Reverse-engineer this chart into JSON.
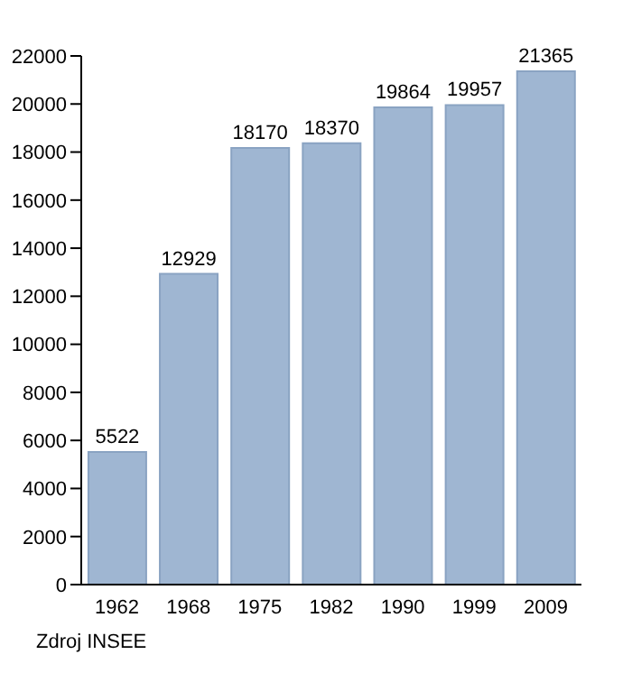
{
  "chart_data": {
    "type": "bar",
    "categories": [
      "1962",
      "1968",
      "1975",
      "1982",
      "1990",
      "1999",
      "2009"
    ],
    "values": [
      5522,
      12929,
      18170,
      18370,
      19864,
      19957,
      21365
    ],
    "color": "#9fb6d2",
    "ylim": [
      0,
      22000
    ],
    "yticks": [
      0,
      2000,
      4000,
      6000,
      8000,
      10000,
      12000,
      14000,
      16000,
      18000,
      20000,
      22000
    ],
    "data_labels": true,
    "grid": false,
    "annotations": [
      "Zdroj INSEE"
    ]
  }
}
